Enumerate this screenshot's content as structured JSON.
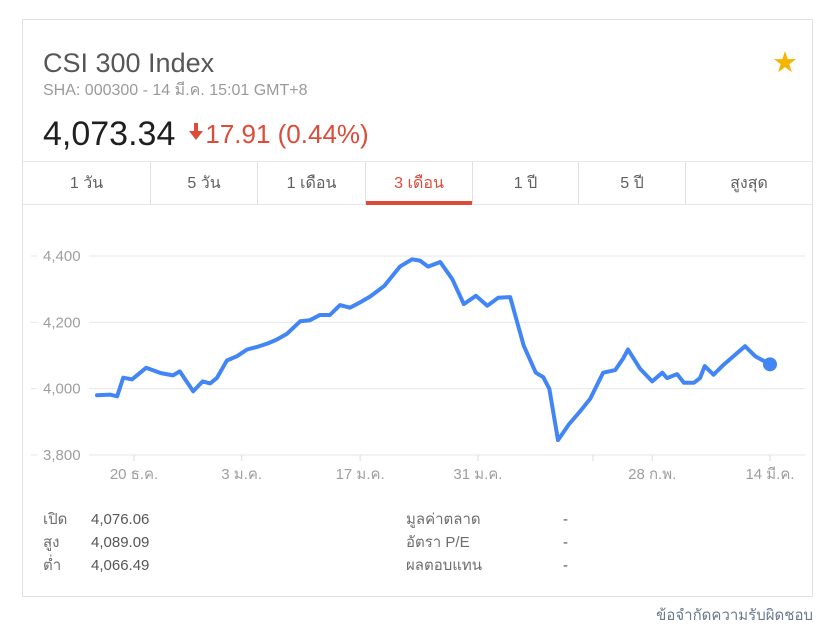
{
  "header": {
    "title": "CSI 300 Index",
    "subtitle": "SHA: 000300 - 14 มี.ค. 15:01 GMT+8",
    "price": "4,073.34",
    "change": "17.91 (0.44%)",
    "change_direction": "down",
    "starred": true
  },
  "tabs": {
    "selected_index": 3,
    "items": [
      {
        "name": "tab-1-day",
        "label": "1 วัน"
      },
      {
        "name": "tab-5-days",
        "label": "5 วัน"
      },
      {
        "name": "tab-1-month",
        "label": "1 เดือน"
      },
      {
        "name": "tab-3-months",
        "label": "3 เดือน"
      },
      {
        "name": "tab-1-year",
        "label": "1 ปี"
      },
      {
        "name": "tab-5-years",
        "label": "5 ปี"
      },
      {
        "name": "tab-max",
        "label": "สูงสุด"
      }
    ]
  },
  "chart_data": {
    "type": "line",
    "title": "CSI 300 Index - 3 เดือน",
    "ylim": [
      3800,
      4400
    ],
    "grid": true,
    "legend": "none",
    "line_color": "#4285f4",
    "end_value": 4073.34,
    "y_ticks": [
      {
        "label": "3,800",
        "value": 3800
      },
      {
        "label": "4,000",
        "value": 4000
      },
      {
        "label": "4,200",
        "value": 4200
      },
      {
        "label": "4,400",
        "value": 4400
      }
    ],
    "x_ticks": [
      {
        "label": "20 ธ.ค.",
        "pos": 0.055
      },
      {
        "label": "3 ม.ค.",
        "pos": 0.215
      },
      {
        "label": "17 ม.ค.",
        "pos": 0.391
      },
      {
        "label": "31 ม.ค.",
        "pos": 0.566
      },
      {
        "label": "",
        "pos": 0.737
      },
      {
        "label": "28 ก.พ.",
        "pos": 0.825
      },
      {
        "label": "14 มี.ค.",
        "pos": 1.0
      }
    ],
    "series": [
      {
        "name": "CSI 300",
        "x_unit": "fraction_of_plot_span",
        "points": [
          [
            0.0,
            3980
          ],
          [
            0.019,
            3982
          ],
          [
            0.03,
            3977
          ],
          [
            0.039,
            4033
          ],
          [
            0.052,
            4028
          ],
          [
            0.073,
            4063
          ],
          [
            0.095,
            4047
          ],
          [
            0.113,
            4040
          ],
          [
            0.123,
            4052
          ],
          [
            0.143,
            3992
          ],
          [
            0.157,
            4022
          ],
          [
            0.168,
            4016
          ],
          [
            0.178,
            4032
          ],
          [
            0.193,
            4085
          ],
          [
            0.208,
            4098
          ],
          [
            0.223,
            4118
          ],
          [
            0.238,
            4126
          ],
          [
            0.253,
            4136
          ],
          [
            0.267,
            4148
          ],
          [
            0.282,
            4165
          ],
          [
            0.302,
            4203
          ],
          [
            0.316,
            4206
          ],
          [
            0.331,
            4222
          ],
          [
            0.346,
            4222
          ],
          [
            0.361,
            4252
          ],
          [
            0.376,
            4244
          ],
          [
            0.391,
            4260
          ],
          [
            0.406,
            4278
          ],
          [
            0.427,
            4310
          ],
          [
            0.45,
            4368
          ],
          [
            0.468,
            4390
          ],
          [
            0.48,
            4386
          ],
          [
            0.492,
            4368
          ],
          [
            0.51,
            4382
          ],
          [
            0.528,
            4330
          ],
          [
            0.545,
            4255
          ],
          [
            0.563,
            4280
          ],
          [
            0.58,
            4250
          ],
          [
            0.596,
            4274
          ],
          [
            0.614,
            4276
          ],
          [
            0.634,
            4130
          ],
          [
            0.652,
            4048
          ],
          [
            0.663,
            4035
          ],
          [
            0.672,
            4000
          ],
          [
            0.685,
            3845
          ],
          [
            0.701,
            3892
          ],
          [
            0.718,
            3932
          ],
          [
            0.733,
            3970
          ],
          [
            0.752,
            4048
          ],
          [
            0.77,
            4056
          ],
          [
            0.782,
            4092
          ],
          [
            0.789,
            4118
          ],
          [
            0.807,
            4060
          ],
          [
            0.825,
            4022
          ],
          [
            0.84,
            4048
          ],
          [
            0.847,
            4032
          ],
          [
            0.862,
            4044
          ],
          [
            0.872,
            4018
          ],
          [
            0.887,
            4018
          ],
          [
            0.896,
            4032
          ],
          [
            0.903,
            4068
          ],
          [
            0.916,
            4042
          ],
          [
            0.93,
            4070
          ],
          [
            0.947,
            4100
          ],
          [
            0.963,
            4128
          ],
          [
            0.978,
            4098
          ],
          [
            1.0,
            4073.34
          ]
        ]
      }
    ]
  },
  "stats": {
    "left": [
      {
        "name": "stat-open",
        "label": "เปิด",
        "value": "4,076.06"
      },
      {
        "name": "stat-high",
        "label": "สูง",
        "value": "4,089.09"
      },
      {
        "name": "stat-low",
        "label": "ต่ำ",
        "value": "4,066.49"
      }
    ],
    "right": [
      {
        "name": "stat-market-cap",
        "label": "มูลค่าตลาด",
        "value": "-"
      },
      {
        "name": "stat-pe-ratio",
        "label": "อัตรา P/E",
        "value": "-"
      },
      {
        "name": "stat-div-yield",
        "label": "ผลตอบแทน",
        "value": "-"
      }
    ]
  },
  "footer": {
    "disclaimer": "ข้อจำกัดความรับผิดชอบ"
  },
  "colors": {
    "accent_red": "#dd4b39",
    "line_blue": "#4285f4",
    "star_gold": "#f4b400",
    "grid_gray": "#e6e6e6",
    "axis_text": "#9e9e9e"
  }
}
